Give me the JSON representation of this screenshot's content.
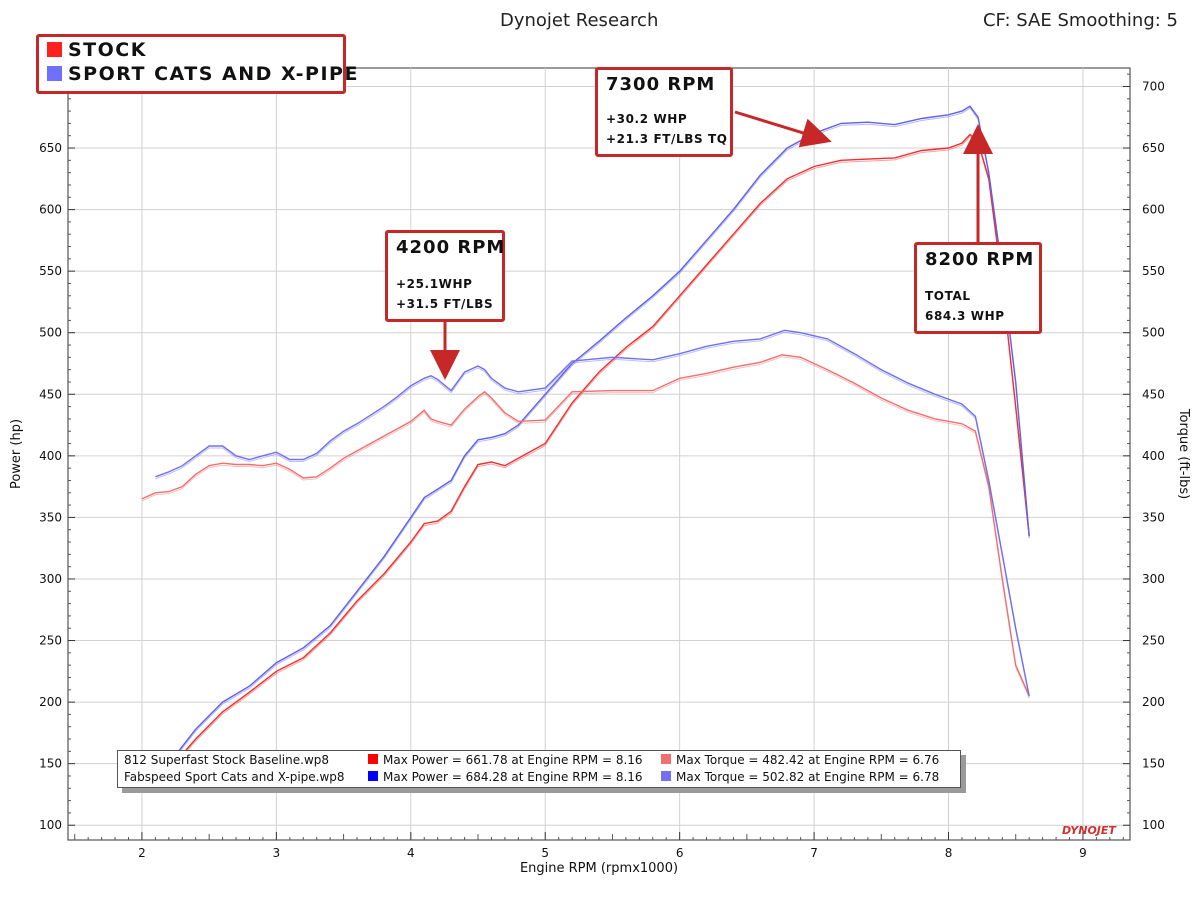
{
  "header": {
    "title": "Dynojet Research",
    "correction": "CF: SAE Smoothing: 5"
  },
  "legend": {
    "items": [
      {
        "label": "STOCK",
        "color": "#ff2020"
      },
      {
        "label": "SPORT CATS AND X-PIPE",
        "color": "#7070ff"
      }
    ]
  },
  "callouts": [
    {
      "title": "7300 RPM",
      "lines": [
        "+30.2 WHP",
        "+21.3 FT/LBS TQ"
      ]
    },
    {
      "title": "4200 RPM",
      "lines": [
        "+25.1WHP",
        "+31.5 FT/LBS"
      ]
    },
    {
      "title": "8200 RPM",
      "lines": [
        "TOTAL",
        "684.3 WHP"
      ]
    }
  ],
  "info_box": {
    "rows": [
      {
        "file": "812 Superfast Stock Baseline.wp8",
        "power_text": "Max Power = 661.78 at Engine RPM = 8.16",
        "power_color": "#ff0000",
        "torque_text": "Max Torque = 482.42 at Engine RPM = 6.76",
        "torque_color": "#f07070"
      },
      {
        "file": "Fabspeed Sport Cats and X-pipe.wp8",
        "power_text": "Max Power = 684.28 at Engine RPM = 8.16",
        "power_color": "#0000ff",
        "torque_text": "Max Torque = 502.82 at Engine RPM = 6.78",
        "torque_color": "#7070f0"
      }
    ]
  },
  "logo": "DYNOJET",
  "chart_data": {
    "type": "line",
    "xlabel": "Engine RPM (rpmx1000)",
    "ylabel": "Power (hp)",
    "y2label": "Torque (ft-lbs)",
    "xlim": [
      1.45,
      9.35
    ],
    "ylim": [
      88,
      715
    ],
    "x_ticks": [
      2,
      3,
      4,
      5,
      6,
      7,
      8,
      9
    ],
    "y_ticks": [
      100,
      150,
      200,
      250,
      300,
      350,
      400,
      450,
      500,
      550,
      600,
      650,
      700
    ],
    "grid": true,
    "series": [
      {
        "name": "Stock Power",
        "color": "#ee3030",
        "x": [
          2.05,
          2.2,
          2.4,
          2.6,
          2.8,
          3.0,
          3.2,
          3.4,
          3.6,
          3.8,
          4.0,
          4.1,
          4.2,
          4.3,
          4.4,
          4.5,
          4.6,
          4.7,
          4.8,
          5.0,
          5.2,
          5.4,
          5.6,
          5.8,
          6.0,
          6.2,
          6.4,
          6.6,
          6.8,
          7.0,
          7.2,
          7.4,
          7.6,
          7.8,
          8.0,
          8.1,
          8.16,
          8.22,
          8.3,
          8.4,
          8.5,
          8.6
        ],
        "y": [
          128,
          145,
          170,
          192,
          208,
          225,
          236,
          256,
          282,
          304,
          330,
          345,
          347,
          355,
          375,
          393,
          395,
          392,
          398,
          410,
          443,
          468,
          488,
          505,
          530,
          555,
          580,
          605,
          625,
          635,
          640,
          641,
          642,
          648,
          650,
          654,
          661,
          655,
          625,
          540,
          440,
          335
        ]
      },
      {
        "name": "Sport Cats Power",
        "color": "#6060ee",
        "x": [
          2.05,
          2.2,
          2.4,
          2.6,
          2.8,
          3.0,
          3.2,
          3.4,
          3.6,
          3.8,
          4.0,
          4.1,
          4.2,
          4.3,
          4.4,
          4.5,
          4.6,
          4.7,
          4.8,
          5.0,
          5.2,
          5.4,
          5.6,
          5.8,
          6.0,
          6.2,
          6.4,
          6.6,
          6.8,
          7.0,
          7.2,
          7.4,
          7.6,
          7.8,
          8.0,
          8.1,
          8.16,
          8.22,
          8.3,
          8.4,
          8.5,
          8.6
        ],
        "y": [
          132,
          150,
          178,
          200,
          213,
          232,
          244,
          262,
          290,
          318,
          350,
          366,
          373,
          380,
          400,
          413,
          415,
          418,
          425,
          450,
          475,
          493,
          512,
          530,
          550,
          575,
          600,
          628,
          650,
          662,
          670,
          671,
          669,
          674,
          677,
          680,
          684,
          675,
          630,
          550,
          460,
          335
        ]
      },
      {
        "name": "Stock Torque",
        "color": "#f07070",
        "x": [
          2.0,
          2.1,
          2.2,
          2.3,
          2.4,
          2.5,
          2.6,
          2.7,
          2.8,
          2.9,
          3.0,
          3.1,
          3.2,
          3.3,
          3.4,
          3.5,
          3.6,
          3.7,
          3.8,
          3.9,
          4.0,
          4.1,
          4.15,
          4.2,
          4.3,
          4.4,
          4.5,
          4.55,
          4.6,
          4.7,
          4.8,
          5.0,
          5.2,
          5.5,
          5.8,
          6.0,
          6.2,
          6.4,
          6.6,
          6.76,
          6.9,
          7.1,
          7.3,
          7.5,
          7.7,
          7.9,
          8.1,
          8.2,
          8.3,
          8.4,
          8.5,
          8.6
        ],
        "y": [
          365,
          370,
          371,
          375,
          385,
          392,
          394,
          393,
          393,
          392,
          394,
          389,
          382,
          383,
          390,
          398,
          404,
          410,
          416,
          422,
          428,
          437,
          430,
          428,
          425,
          438,
          448,
          452,
          447,
          435,
          428,
          429,
          452,
          453,
          453,
          463,
          467,
          472,
          476,
          482,
          480,
          470,
          459,
          447,
          437,
          430,
          426,
          420,
          375,
          300,
          230,
          205
        ]
      },
      {
        "name": "Sport Cats Torque",
        "color": "#7070f0",
        "x": [
          2.1,
          2.2,
          2.3,
          2.4,
          2.5,
          2.6,
          2.7,
          2.8,
          2.9,
          3.0,
          3.1,
          3.2,
          3.3,
          3.4,
          3.5,
          3.6,
          3.7,
          3.8,
          3.9,
          4.0,
          4.1,
          4.15,
          4.2,
          4.3,
          4.4,
          4.5,
          4.55,
          4.6,
          4.7,
          4.8,
          5.0,
          5.2,
          5.5,
          5.8,
          6.0,
          6.2,
          6.4,
          6.6,
          6.78,
          6.9,
          7.1,
          7.3,
          7.5,
          7.7,
          7.9,
          8.1,
          8.2,
          8.3,
          8.4,
          8.5,
          8.6
        ],
        "y": [
          383,
          387,
          392,
          400,
          408,
          408,
          400,
          397,
          400,
          403,
          397,
          397,
          402,
          412,
          420,
          426,
          433,
          440,
          448,
          457,
          463,
          465,
          462,
          453,
          468,
          473,
          470,
          463,
          455,
          452,
          455,
          477,
          480,
          478,
          483,
          489,
          493,
          495,
          502,
          500,
          495,
          483,
          470,
          459,
          450,
          442,
          432,
          380,
          320,
          260,
          205
        ]
      }
    ]
  }
}
